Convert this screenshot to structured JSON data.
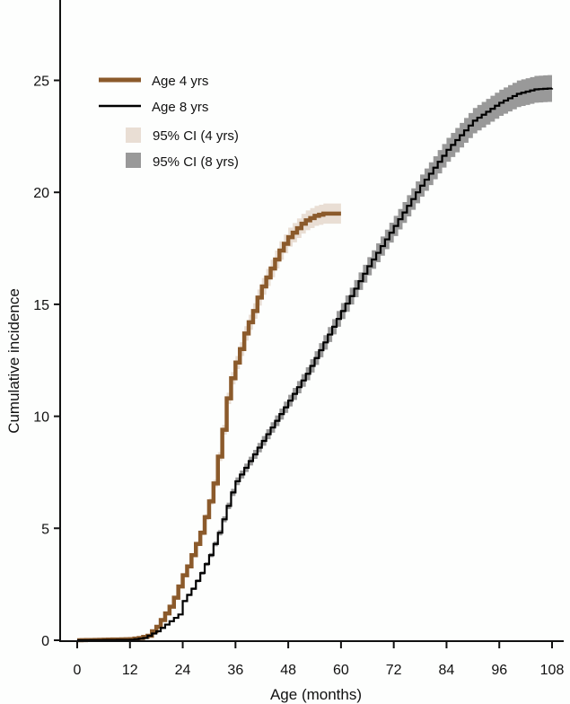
{
  "chart_data": {
    "type": "line",
    "title": "",
    "xlabel": "Age (months)",
    "ylabel": "Cumulative incidence",
    "xlim": [
      0,
      108
    ],
    "ylim": [
      0,
      25
    ],
    "xticks": [
      0,
      12,
      24,
      36,
      48,
      60,
      72,
      84,
      96,
      108
    ],
    "yticks": [
      0,
      5,
      10,
      15,
      20,
      25
    ],
    "grid": false,
    "legend_placement": "top-left",
    "step": true,
    "series": [
      {
        "name": "Age 4 yrs",
        "color": "#8b5a2b",
        "ci_name": "95% CI (4 yrs)",
        "ci_color": "#e9ded4",
        "ci_halfwidth_max": 0.45,
        "x": [
          0,
          12,
          14,
          16,
          17,
          18,
          19,
          20,
          21,
          22,
          23,
          24,
          25,
          26,
          27,
          28,
          29,
          30,
          31,
          32,
          33,
          34,
          35,
          36,
          37,
          38,
          39,
          40,
          41,
          42,
          43,
          44,
          45,
          46,
          47,
          48,
          49,
          50,
          51,
          52,
          53,
          54,
          55,
          56,
          57,
          58,
          59,
          60
        ],
        "y": [
          0,
          0.05,
          0.1,
          0.2,
          0.4,
          0.6,
          0.9,
          1.2,
          1.5,
          1.9,
          2.4,
          2.9,
          3.3,
          3.8,
          4.3,
          4.8,
          5.5,
          6.2,
          7.0,
          8.2,
          9.4,
          10.8,
          11.7,
          12.4,
          13.0,
          13.7,
          14.2,
          14.7,
          15.3,
          15.8,
          16.2,
          16.6,
          17.0,
          17.4,
          17.7,
          18.0,
          18.2,
          18.4,
          18.6,
          18.75,
          18.85,
          18.95,
          19.0,
          19.05,
          19.05,
          19.05,
          19.05,
          19.05
        ]
      },
      {
        "name": "Age 8 yrs",
        "color": "#000000",
        "ci_name": "95% CI (8 yrs)",
        "ci_color": "#999999",
        "ci_halfwidth_max": 0.6,
        "x": [
          0,
          12,
          15,
          18,
          20,
          22,
          23,
          24,
          26,
          28,
          30,
          32,
          34,
          35,
          36,
          38,
          40,
          42,
          44,
          46,
          48,
          52,
          56,
          60,
          66,
          72,
          78,
          84,
          90,
          96,
          100,
          104,
          108
        ],
        "y": [
          0,
          0.02,
          0.1,
          0.4,
          0.7,
          1.0,
          1.15,
          1.75,
          2.3,
          3.0,
          3.8,
          4.8,
          6.0,
          6.6,
          7.1,
          7.7,
          8.3,
          8.9,
          9.5,
          10.1,
          10.7,
          11.9,
          13.3,
          14.7,
          16.7,
          18.5,
          20.3,
          21.9,
          23.2,
          24.0,
          24.4,
          24.6,
          24.65
        ]
      }
    ]
  }
}
